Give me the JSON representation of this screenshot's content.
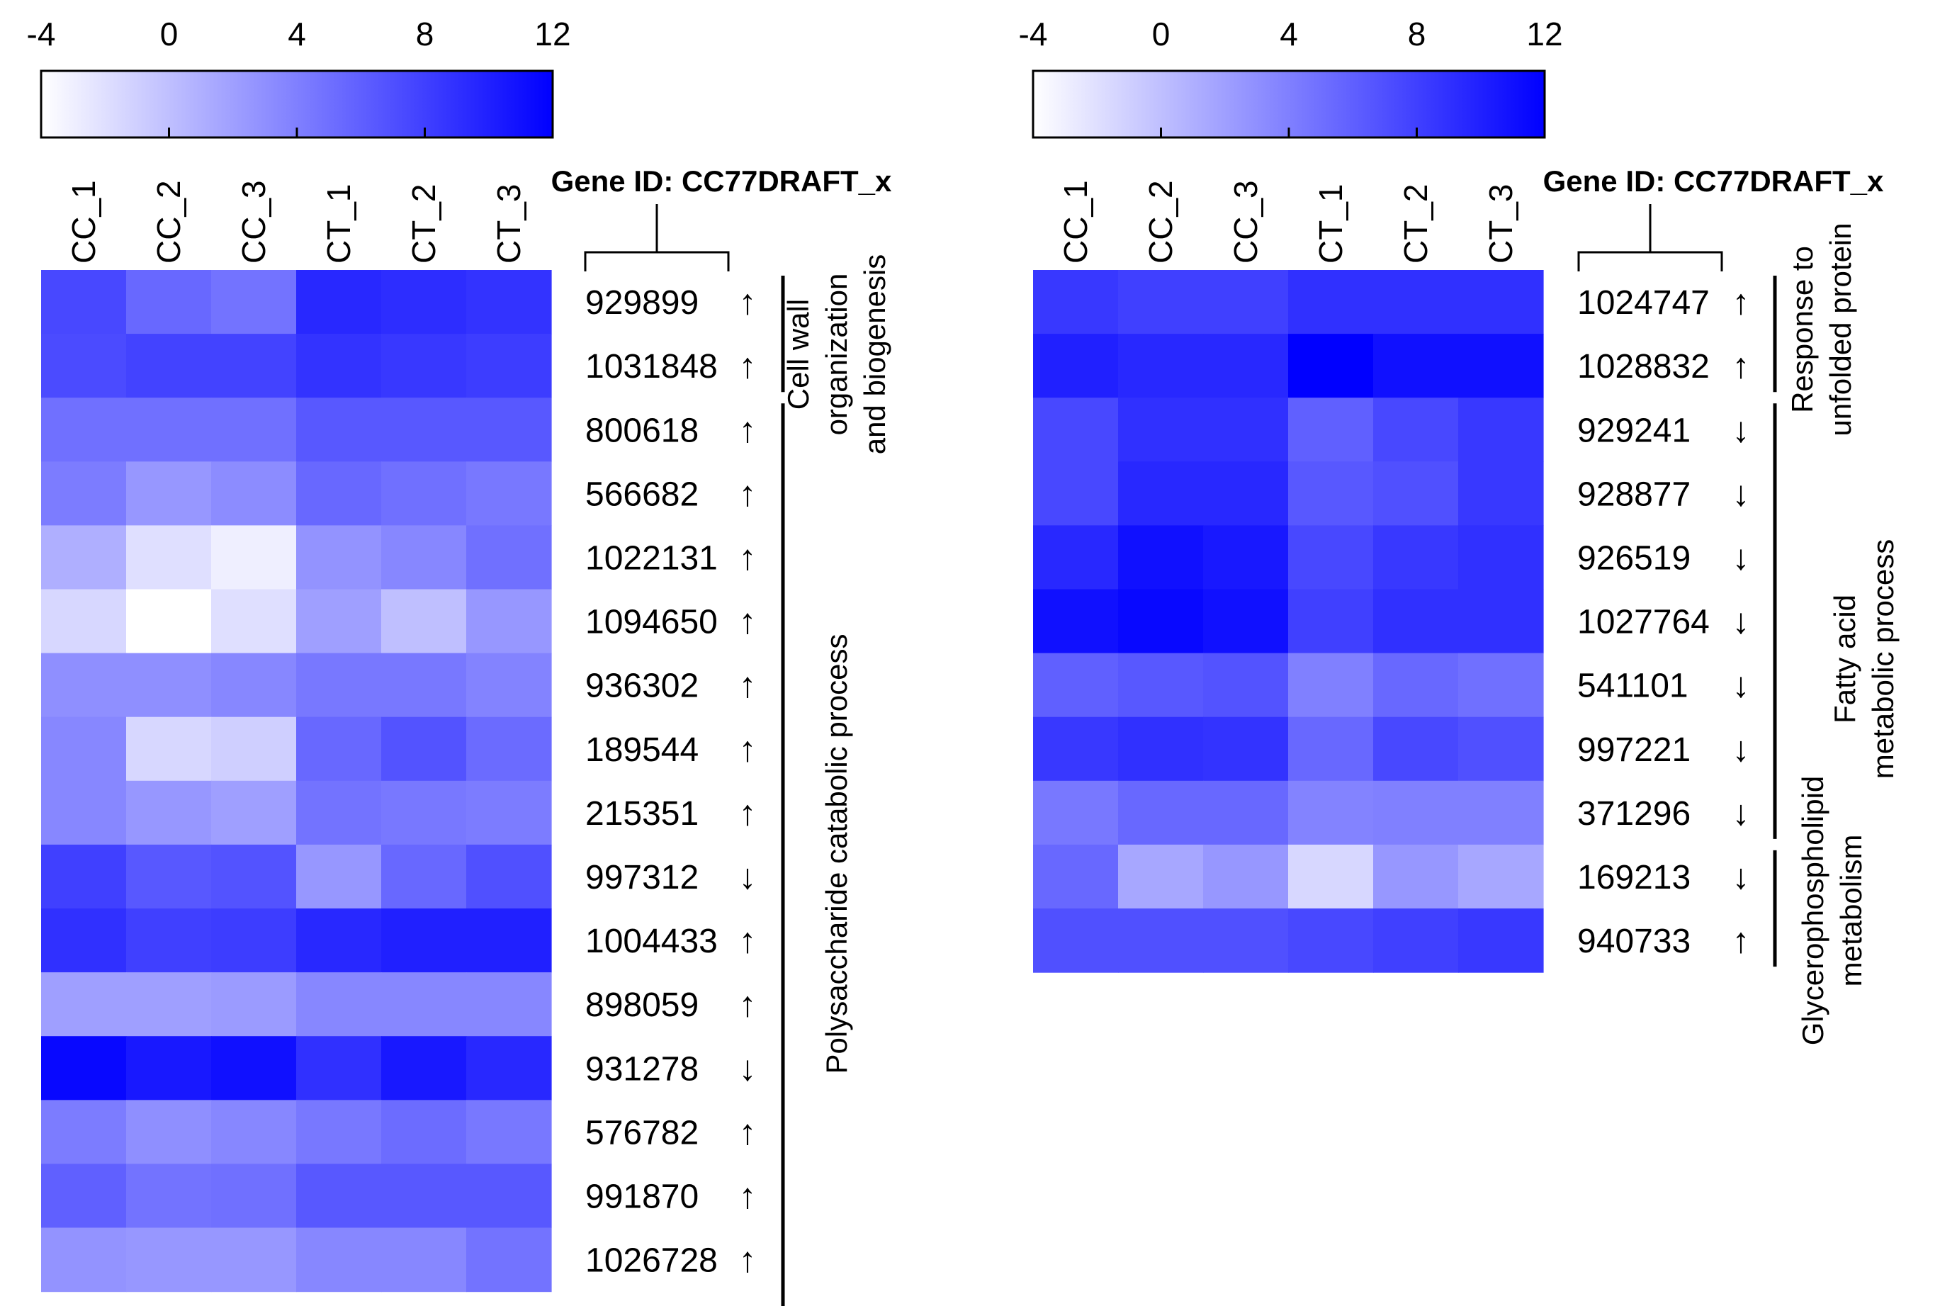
{
  "chart_data": [
    {
      "type": "heatmap",
      "title": "",
      "gene_id_header": "Gene ID: CC77DRAFT_x",
      "columns": [
        "CC_1",
        "CC_2",
        "CC_3",
        "CT_1",
        "CT_2",
        "CT_3"
      ],
      "colorbar": {
        "min": -4,
        "max": 12,
        "ticks": [
          "-4",
          "0",
          "4",
          "8",
          "12"
        ],
        "low_color": "#ffffff",
        "high_color": "#0000ff"
      },
      "rows": [
        {
          "gene": "929899",
          "arrow": "↑",
          "values": [
            7.5,
            5.5,
            4.8,
            9.5,
            9.2,
            8.8
          ]
        },
        {
          "gene": "1031848",
          "arrow": "↑",
          "values": [
            7.3,
            7.8,
            7.8,
            8.8,
            8.5,
            8.2
          ]
        },
        {
          "gene": "800618",
          "arrow": "↑",
          "values": [
            5.0,
            5.0,
            5.0,
            6.5,
            6.5,
            6.5
          ]
        },
        {
          "gene": "566682",
          "arrow": "↑",
          "values": [
            4.2,
            2.5,
            3.2,
            5.5,
            5.0,
            4.5
          ]
        },
        {
          "gene": "1022131",
          "arrow": "↑",
          "values": [
            1.0,
            -2.0,
            -3.0,
            2.8,
            3.5,
            5.0
          ]
        },
        {
          "gene": "1094650",
          "arrow": "↑",
          "values": [
            -1.5,
            -4.0,
            -2.0,
            2.0,
            0.0,
            2.5
          ]
        },
        {
          "gene": "936302",
          "arrow": "↑",
          "values": [
            3.0,
            3.0,
            3.5,
            4.5,
            4.5,
            3.8
          ]
        },
        {
          "gene": "189544",
          "arrow": "↑",
          "values": [
            3.5,
            -1.5,
            -1.0,
            5.5,
            6.8,
            5.3
          ]
        },
        {
          "gene": "215351",
          "arrow": "↑",
          "values": [
            3.5,
            2.5,
            2.0,
            4.8,
            4.5,
            4.2
          ]
        },
        {
          "gene": "997312",
          "arrow": "↓",
          "values": [
            8.0,
            6.5,
            6.8,
            2.5,
            5.5,
            7.0
          ]
        },
        {
          "gene": "1004433",
          "arrow": "↑",
          "values": [
            9.0,
            8.0,
            8.2,
            9.5,
            10.0,
            10.0
          ]
        },
        {
          "gene": "898059",
          "arrow": "↑",
          "values": [
            2.0,
            2.0,
            2.3,
            3.5,
            3.5,
            3.5
          ]
        },
        {
          "gene": "931278",
          "arrow": "↓",
          "values": [
            11.5,
            10.5,
            11.0,
            9.0,
            10.5,
            9.5
          ]
        },
        {
          "gene": "576782",
          "arrow": "↑",
          "values": [
            4.2,
            3.0,
            3.5,
            4.5,
            5.2,
            4.5
          ]
        },
        {
          "gene": "991870",
          "arrow": "↑",
          "values": [
            6.0,
            4.8,
            5.0,
            6.5,
            6.5,
            6.5
          ]
        },
        {
          "gene": "1026728",
          "arrow": "↑",
          "values": [
            2.8,
            2.5,
            2.5,
            3.5,
            3.5,
            4.8
          ]
        }
      ],
      "categories": [
        {
          "label_lines": [
            "Cell wall",
            "organization",
            "and biogenesis"
          ],
          "row_start": 0,
          "row_end": 1
        },
        {
          "label_lines": [
            "Polysaccharide catabolic process"
          ],
          "row_start": 2,
          "row_end": 15
        }
      ]
    },
    {
      "type": "heatmap",
      "title": "",
      "gene_id_header": "Gene ID: CC77DRAFT_x",
      "columns": [
        "CC_1",
        "CC_2",
        "CC_3",
        "CT_1",
        "CT_2",
        "CT_3"
      ],
      "colorbar": {
        "min": -4,
        "max": 12,
        "ticks": [
          "-4",
          "0",
          "4",
          "8",
          "12"
        ],
        "low_color": "#ffffff",
        "high_color": "#0000ff"
      },
      "rows": [
        {
          "gene": "1024747",
          "arrow": "↑",
          "values": [
            8.5,
            8.0,
            8.0,
            9.0,
            9.0,
            9.0
          ]
        },
        {
          "gene": "1028832",
          "arrow": "↑",
          "values": [
            10.0,
            9.5,
            9.5,
            12.0,
            11.0,
            11.0
          ]
        },
        {
          "gene": "929241",
          "arrow": "↓",
          "values": [
            7.5,
            9.0,
            9.0,
            6.0,
            7.5,
            8.5
          ]
        },
        {
          "gene": "928877",
          "arrow": "↓",
          "values": [
            7.5,
            9.5,
            9.5,
            6.5,
            7.0,
            8.5
          ]
        },
        {
          "gene": "926519",
          "arrow": "↓",
          "values": [
            9.5,
            11.0,
            10.5,
            7.5,
            8.5,
            9.0
          ]
        },
        {
          "gene": "1027764",
          "arrow": "↓",
          "values": [
            11.0,
            11.5,
            11.0,
            8.0,
            9.0,
            9.0
          ]
        },
        {
          "gene": "541101",
          "arrow": "↓",
          "values": [
            6.0,
            6.5,
            6.8,
            4.0,
            5.5,
            5.0
          ]
        },
        {
          "gene": "997221",
          "arrow": "↓",
          "values": [
            8.5,
            9.0,
            8.8,
            5.5,
            7.5,
            7.0
          ]
        },
        {
          "gene": "371296",
          "arrow": "↓",
          "values": [
            4.5,
            5.5,
            5.5,
            3.8,
            4.0,
            4.0
          ]
        },
        {
          "gene": "169213",
          "arrow": "↓",
          "values": [
            5.5,
            1.5,
            2.5,
            -1.5,
            2.5,
            1.5
          ]
        },
        {
          "gene": "940733",
          "arrow": "↑",
          "values": [
            7.0,
            7.0,
            7.0,
            7.5,
            8.0,
            8.5
          ]
        }
      ],
      "categories": [
        {
          "label_lines": [
            "Response to",
            "unfolded protein"
          ],
          "row_start": 0,
          "row_end": 1
        },
        {
          "label_lines": [
            "Fatty acid",
            "metabolic process"
          ],
          "row_start": 2,
          "row_end": 8
        },
        {
          "label_lines": [
            "Glycerophospholipid",
            "metabolism"
          ],
          "row_start": 9,
          "row_end": 10
        }
      ]
    }
  ]
}
